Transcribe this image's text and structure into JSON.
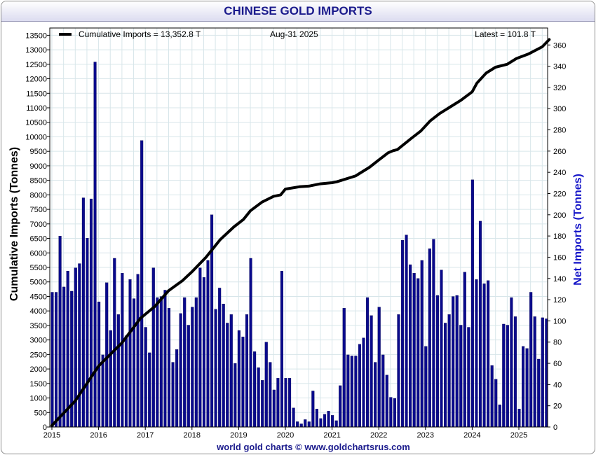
{
  "title": "CHINESE GOLD IMPORTS",
  "credit": "world gold charts © www.goldchartsrus.com",
  "legend": {
    "series_label": "Cumulative Imports = 13,352.8 T",
    "date_label": "Aug-31  2025",
    "latest_label": "Latest = 101.8 T"
  },
  "colors": {
    "bar": "#0a0a8c",
    "line": "#000000",
    "title": "#1a1a8c",
    "right_axis": "#1414c8"
  },
  "chart_data": {
    "type": "bar+line",
    "title": "CHINESE GOLD IMPORTS",
    "ylabel_left": "Cumulative Imports (Tonnes)",
    "ylabel_right": "Net Imports (Tonnes)",
    "ylim_left": [
      0,
      13750
    ],
    "ylim_right": [
      0,
      376
    ],
    "grid": true,
    "legend_placement": "top-left",
    "x_ticks": [
      "2015",
      "2016",
      "2017",
      "2018",
      "2019",
      "2020",
      "2021",
      "2022",
      "2023",
      "2024",
      "2025"
    ],
    "y_left_ticks": [
      "0",
      "500",
      "1000",
      "1500",
      "2000",
      "2500",
      "3000",
      "3500",
      "4000",
      "4500",
      "5000",
      "5500",
      "6000",
      "6500",
      "7000",
      "7500",
      "8000",
      "8500",
      "9000",
      "9500",
      "10000",
      "10500",
      "11000",
      "11500",
      "12000",
      "12500",
      "13000",
      "13500"
    ],
    "y_right_ticks": [
      "0",
      "20",
      "40",
      "60",
      "80",
      "100",
      "120",
      "140",
      "160",
      "180",
      "200",
      "220",
      "240",
      "260",
      "280",
      "300",
      "320",
      "340",
      "360"
    ],
    "series": [
      {
        "name": "Net Imports",
        "kind": "bar",
        "axis": "right",
        "values": [
          127,
          127,
          180,
          132,
          147,
          128,
          150,
          154,
          216,
          178,
          215,
          344,
          118,
          68,
          136,
          91,
          159,
          106,
          145,
          86,
          139,
          121,
          144,
          270,
          94,
          70,
          150,
          122,
          123,
          129,
          112,
          61,
          73,
          107,
          122,
          96,
          113,
          122,
          150,
          141,
          157,
          200,
          111,
          131,
          116,
          98,
          106,
          60,
          91,
          85,
          106,
          159,
          71,
          56,
          44,
          80,
          61,
          35,
          46,
          147,
          46,
          46,
          18,
          5,
          3,
          7,
          5,
          34,
          17,
          8,
          12,
          15,
          11,
          6,
          39,
          112,
          68,
          67,
          67,
          78,
          84,
          122,
          105,
          61,
          113,
          68,
          49,
          28,
          27,
          106,
          176,
          181,
          153,
          145,
          140,
          157,
          76,
          168,
          177,
          124,
          148,
          98,
          106,
          123,
          124,
          96,
          146,
          94,
          233,
          139,
          194,
          135,
          138,
          58,
          45,
          21,
          97,
          96,
          122,
          104,
          17,
          76,
          74,
          127,
          104,
          64,
          103,
          102
        ]
      },
      {
        "name": "Cumulative Imports = 13,352.8 T",
        "kind": "line",
        "axis": "left",
        "x": [
          2015.0,
          2015.5,
          2016.0,
          2016.5,
          2016.9,
          2017.2,
          2017.5,
          2017.8,
          2018.0,
          2018.3,
          2018.6,
          2018.9,
          2019.1,
          2019.25,
          2019.5,
          2019.75,
          2019.9,
          2020.0,
          2020.3,
          2020.5,
          2020.75,
          2021.0,
          2021.1,
          2021.5,
          2021.8,
          2022.0,
          2022.2,
          2022.3,
          2022.4,
          2022.7,
          2022.9,
          2023.1,
          2023.3,
          2023.5,
          2023.75,
          2024.0,
          2024.1,
          2024.3,
          2024.5,
          2024.75,
          2024.95,
          2025.2,
          2025.5,
          2025.65
        ],
        "values": [
          50,
          900,
          2100,
          2900,
          3750,
          4150,
          4700,
          5050,
          5350,
          5850,
          6450,
          6900,
          7150,
          7450,
          7750,
          7950,
          8000,
          8200,
          8280,
          8300,
          8380,
          8420,
          8450,
          8650,
          8950,
          9200,
          9450,
          9520,
          9560,
          9950,
          10200,
          10550,
          10800,
          11000,
          11250,
          11550,
          11850,
          12200,
          12400,
          12500,
          12700,
          12850,
          13100,
          13352
        ]
      }
    ]
  }
}
